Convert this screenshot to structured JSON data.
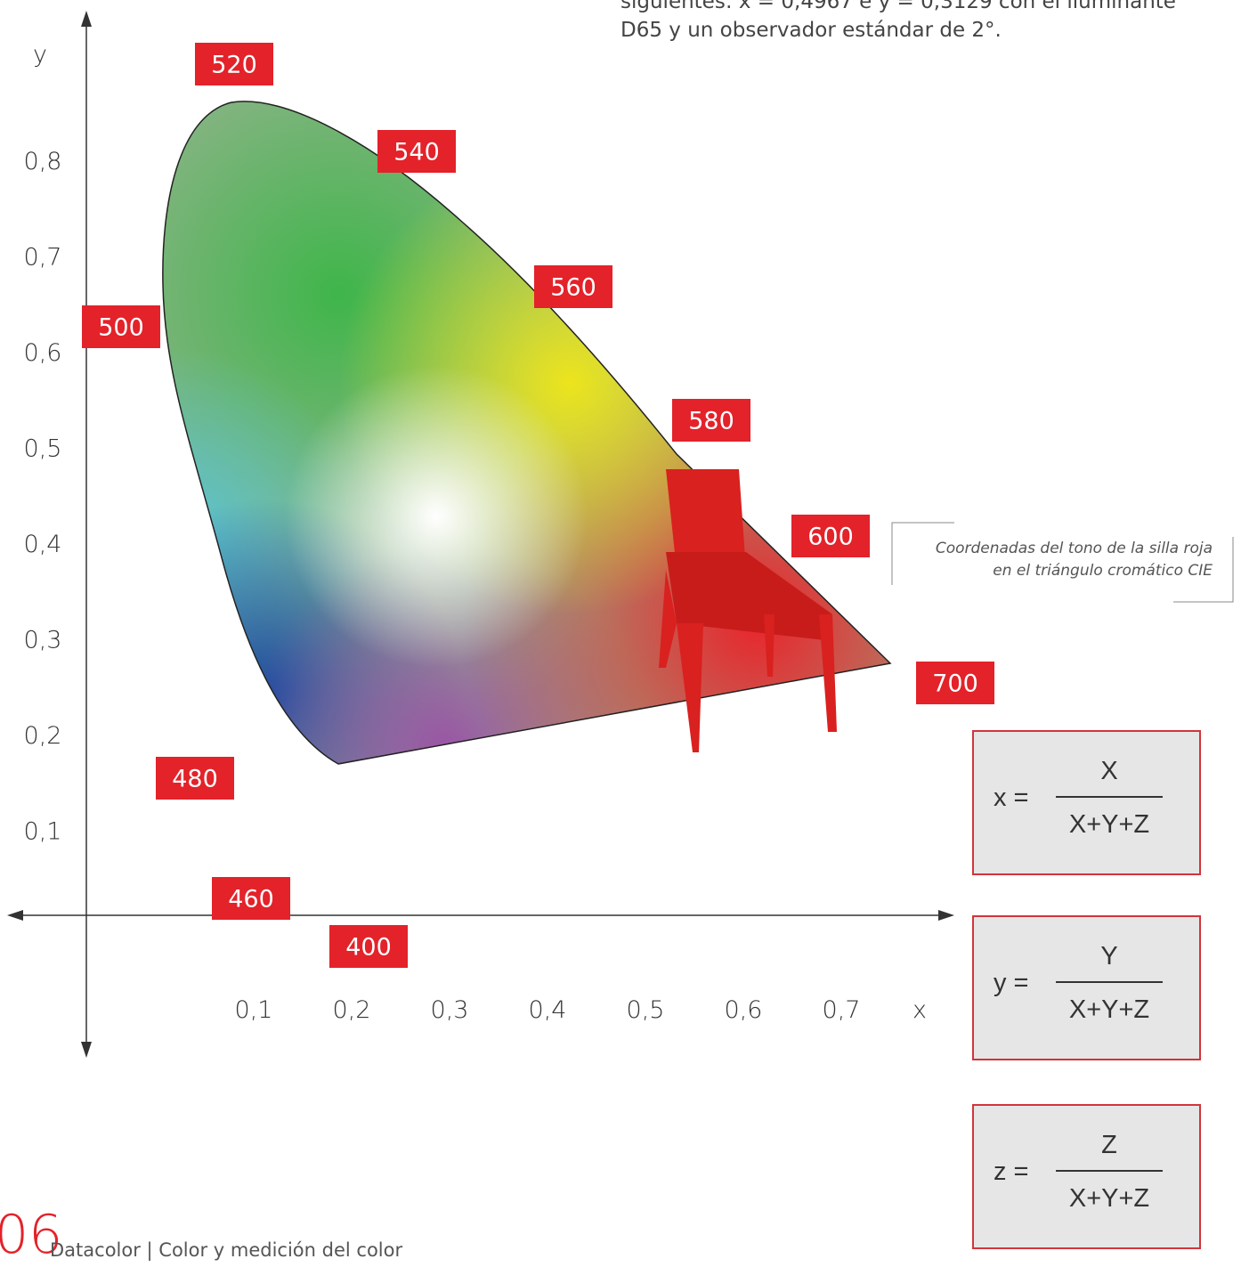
{
  "intro": {
    "lines": [
      "siguientes: x = 0,4967 e y = 0,3129 con el iluminante",
      "D65 y un observador estándar de 2°."
    ]
  },
  "diagram": {
    "y_axis_label": "y",
    "x_axis_label": "x",
    "y_ticks": [
      "0,8",
      "0,7",
      "0,6",
      "0,5",
      "0,4",
      "0,3",
      "0,2",
      "0,1"
    ],
    "x_ticks": [
      "0,1",
      "0,2",
      "0,3",
      "0,4",
      "0,5",
      "0,6",
      "0,7"
    ],
    "wavelengths": [
      "520",
      "540",
      "560",
      "500",
      "580",
      "600",
      "700",
      "480",
      "460",
      "400"
    ],
    "callout": [
      "Coordenadas del tono de la silla roja",
      "en el triángulo cromático CIE"
    ]
  },
  "formulas": [
    {
      "lhs": "x =",
      "numerator": "X",
      "denominator": "X+Y+Z"
    },
    {
      "lhs": "y =",
      "numerator": "Y",
      "denominator": "X+Y+Z"
    },
    {
      "lhs": "z =",
      "numerator": "Z",
      "denominator": "X+Y+Z"
    }
  ],
  "footer": {
    "page_number": "06",
    "text": "Datacolor | Color y medición del color"
  }
}
